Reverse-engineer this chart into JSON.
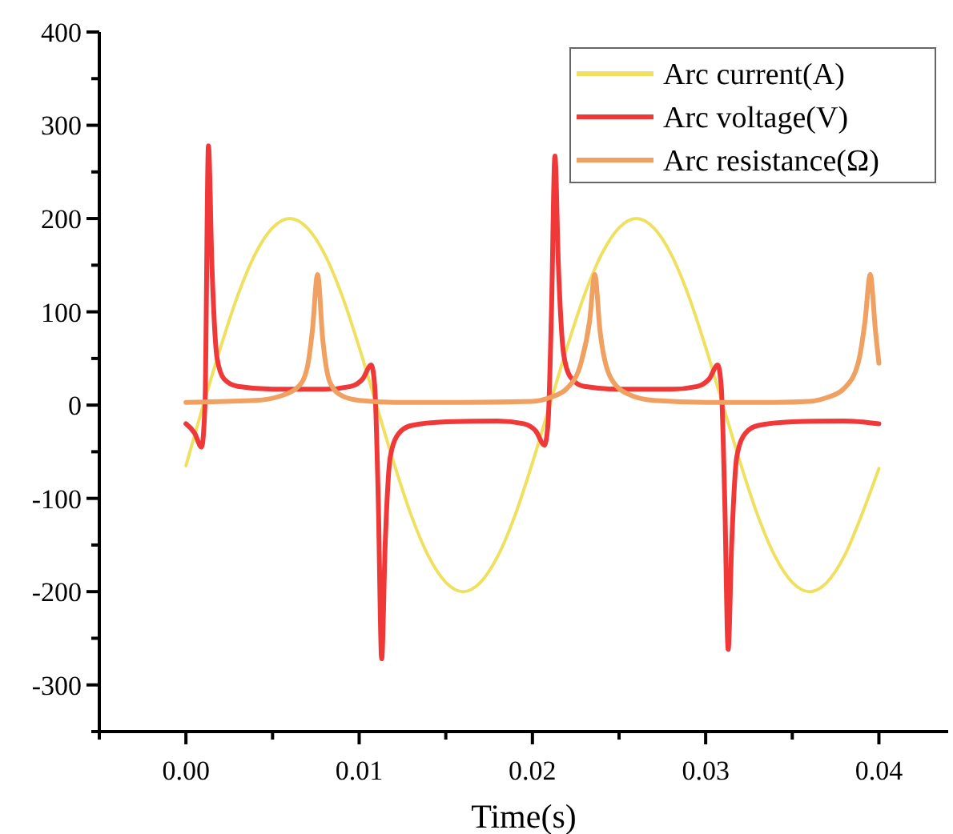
{
  "chart_data": {
    "type": "line",
    "xlabel": "Time(s)",
    "xlim": [
      -0.005,
      0.044
    ],
    "xticks": [
      {
        "value": -0.005,
        "label": null
      },
      {
        "value": 0,
        "label": "0.00"
      },
      {
        "value": 0.005,
        "label": null
      },
      {
        "value": 0.01,
        "label": "0.01"
      },
      {
        "value": 0.015,
        "label": null
      },
      {
        "value": 0.02,
        "label": "0.02"
      },
      {
        "value": 0.025,
        "label": null
      },
      {
        "value": 0.03,
        "label": "0.03"
      },
      {
        "value": 0.035,
        "label": null
      },
      {
        "value": 0.04,
        "label": "0.04"
      }
    ],
    "ylim": [
      -350,
      400
    ],
    "yticks": [
      {
        "value": -350,
        "label": null
      },
      -300,
      {
        "value": -250,
        "label": null
      },
      -200,
      {
        "value": -150,
        "label": null
      },
      -100,
      {
        "value": -50,
        "label": null
      },
      0,
      {
        "value": 50,
        "label": null
      },
      100,
      {
        "value": 150,
        "label": null
      },
      200,
      {
        "value": 250,
        "label": null
      },
      300,
      {
        "value": 350,
        "label": null
      },
      400
    ],
    "grid": false,
    "legend": "top right",
    "marker": "none",
    "line_style": "solid",
    "series": [
      {
        "name": "Arc current(A)",
        "color": "#f0e060",
        "x": [
          0,
          0.001,
          0.002,
          0.003,
          0.004,
          0.005,
          0.006,
          0.007,
          0.008,
          0.009,
          0.01,
          0.011,
          0.012,
          0.013,
          0.014,
          0.015,
          0.016,
          0.017,
          0.018,
          0.019,
          0.02,
          0.021,
          0.022,
          0.023,
          0.024,
          0.025,
          0.026,
          0.027,
          0.028,
          0.029,
          0.03,
          0.031,
          0.032,
          0.033,
          0.034,
          0.035,
          0.036,
          0.037,
          0.038,
          0.039,
          0.04
        ],
        "values": [
          -65,
          0,
          62,
          118,
          162,
          190,
          200,
          190,
          162,
          118,
          62,
          0,
          -62,
          -118,
          -162,
          -190,
          -200,
          -190,
          -162,
          -118,
          -62,
          0,
          62,
          118,
          162,
          190,
          200,
          190,
          162,
          118,
          62,
          0,
          -62,
          -118,
          -162,
          -190,
          -200,
          -190,
          -162,
          -118,
          -68
        ]
      },
      {
        "name": "Arc voltage(V)",
        "color": "#f03838",
        "x": [
          0,
          0.0005,
          0.0009,
          0.0011,
          0.0013,
          0.0015,
          0.0018,
          0.0022,
          0.003,
          0.005,
          0.008,
          0.0095,
          0.0102,
          0.0107,
          0.0109,
          0.0111,
          0.0113,
          0.0115,
          0.0118,
          0.0123,
          0.013,
          0.015,
          0.018,
          0.0195,
          0.0202,
          0.0207,
          0.0209,
          0.0211,
          0.0213,
          0.0215,
          0.0218,
          0.0222,
          0.023,
          0.025,
          0.028,
          0.0295,
          0.0302,
          0.0307,
          0.0309,
          0.0311,
          0.0313,
          0.0315,
          0.0318,
          0.0323,
          0.033,
          0.035,
          0.038,
          0.04
        ],
        "values": [
          -20,
          -30,
          -45,
          0,
          278,
          150,
          50,
          28,
          20,
          17,
          17,
          20,
          28,
          43,
          20,
          -100,
          -272,
          -150,
          -55,
          -30,
          -22,
          -18,
          -17,
          -20,
          -28,
          -43,
          -20,
          100,
          267,
          150,
          55,
          30,
          20,
          17,
          17,
          20,
          28,
          43,
          20,
          -100,
          -262,
          -150,
          -55,
          -30,
          -22,
          -18,
          -17,
          -20
        ]
      },
      {
        "name": "Arc resistance(Ω)",
        "color": "#f0a060",
        "x": [
          0,
          0.004,
          0.0055,
          0.0065,
          0.007,
          0.0073,
          0.0076,
          0.0079,
          0.0083,
          0.009,
          0.01,
          0.012,
          0.016,
          0.02,
          0.021,
          0.022,
          0.0228,
          0.0233,
          0.0236,
          0.0239,
          0.0245,
          0.0255,
          0.027,
          0.03,
          0.034,
          0.036,
          0.037,
          0.038,
          0.0388,
          0.0392,
          0.0395,
          0.0398,
          0.04
        ],
        "values": [
          3,
          5,
          10,
          20,
          40,
          80,
          140,
          70,
          25,
          10,
          5,
          3,
          3,
          4,
          8,
          18,
          45,
          90,
          140,
          80,
          30,
          12,
          5,
          3,
          3,
          4,
          8,
          18,
          45,
          90,
          140,
          80,
          45
        ]
      }
    ]
  }
}
